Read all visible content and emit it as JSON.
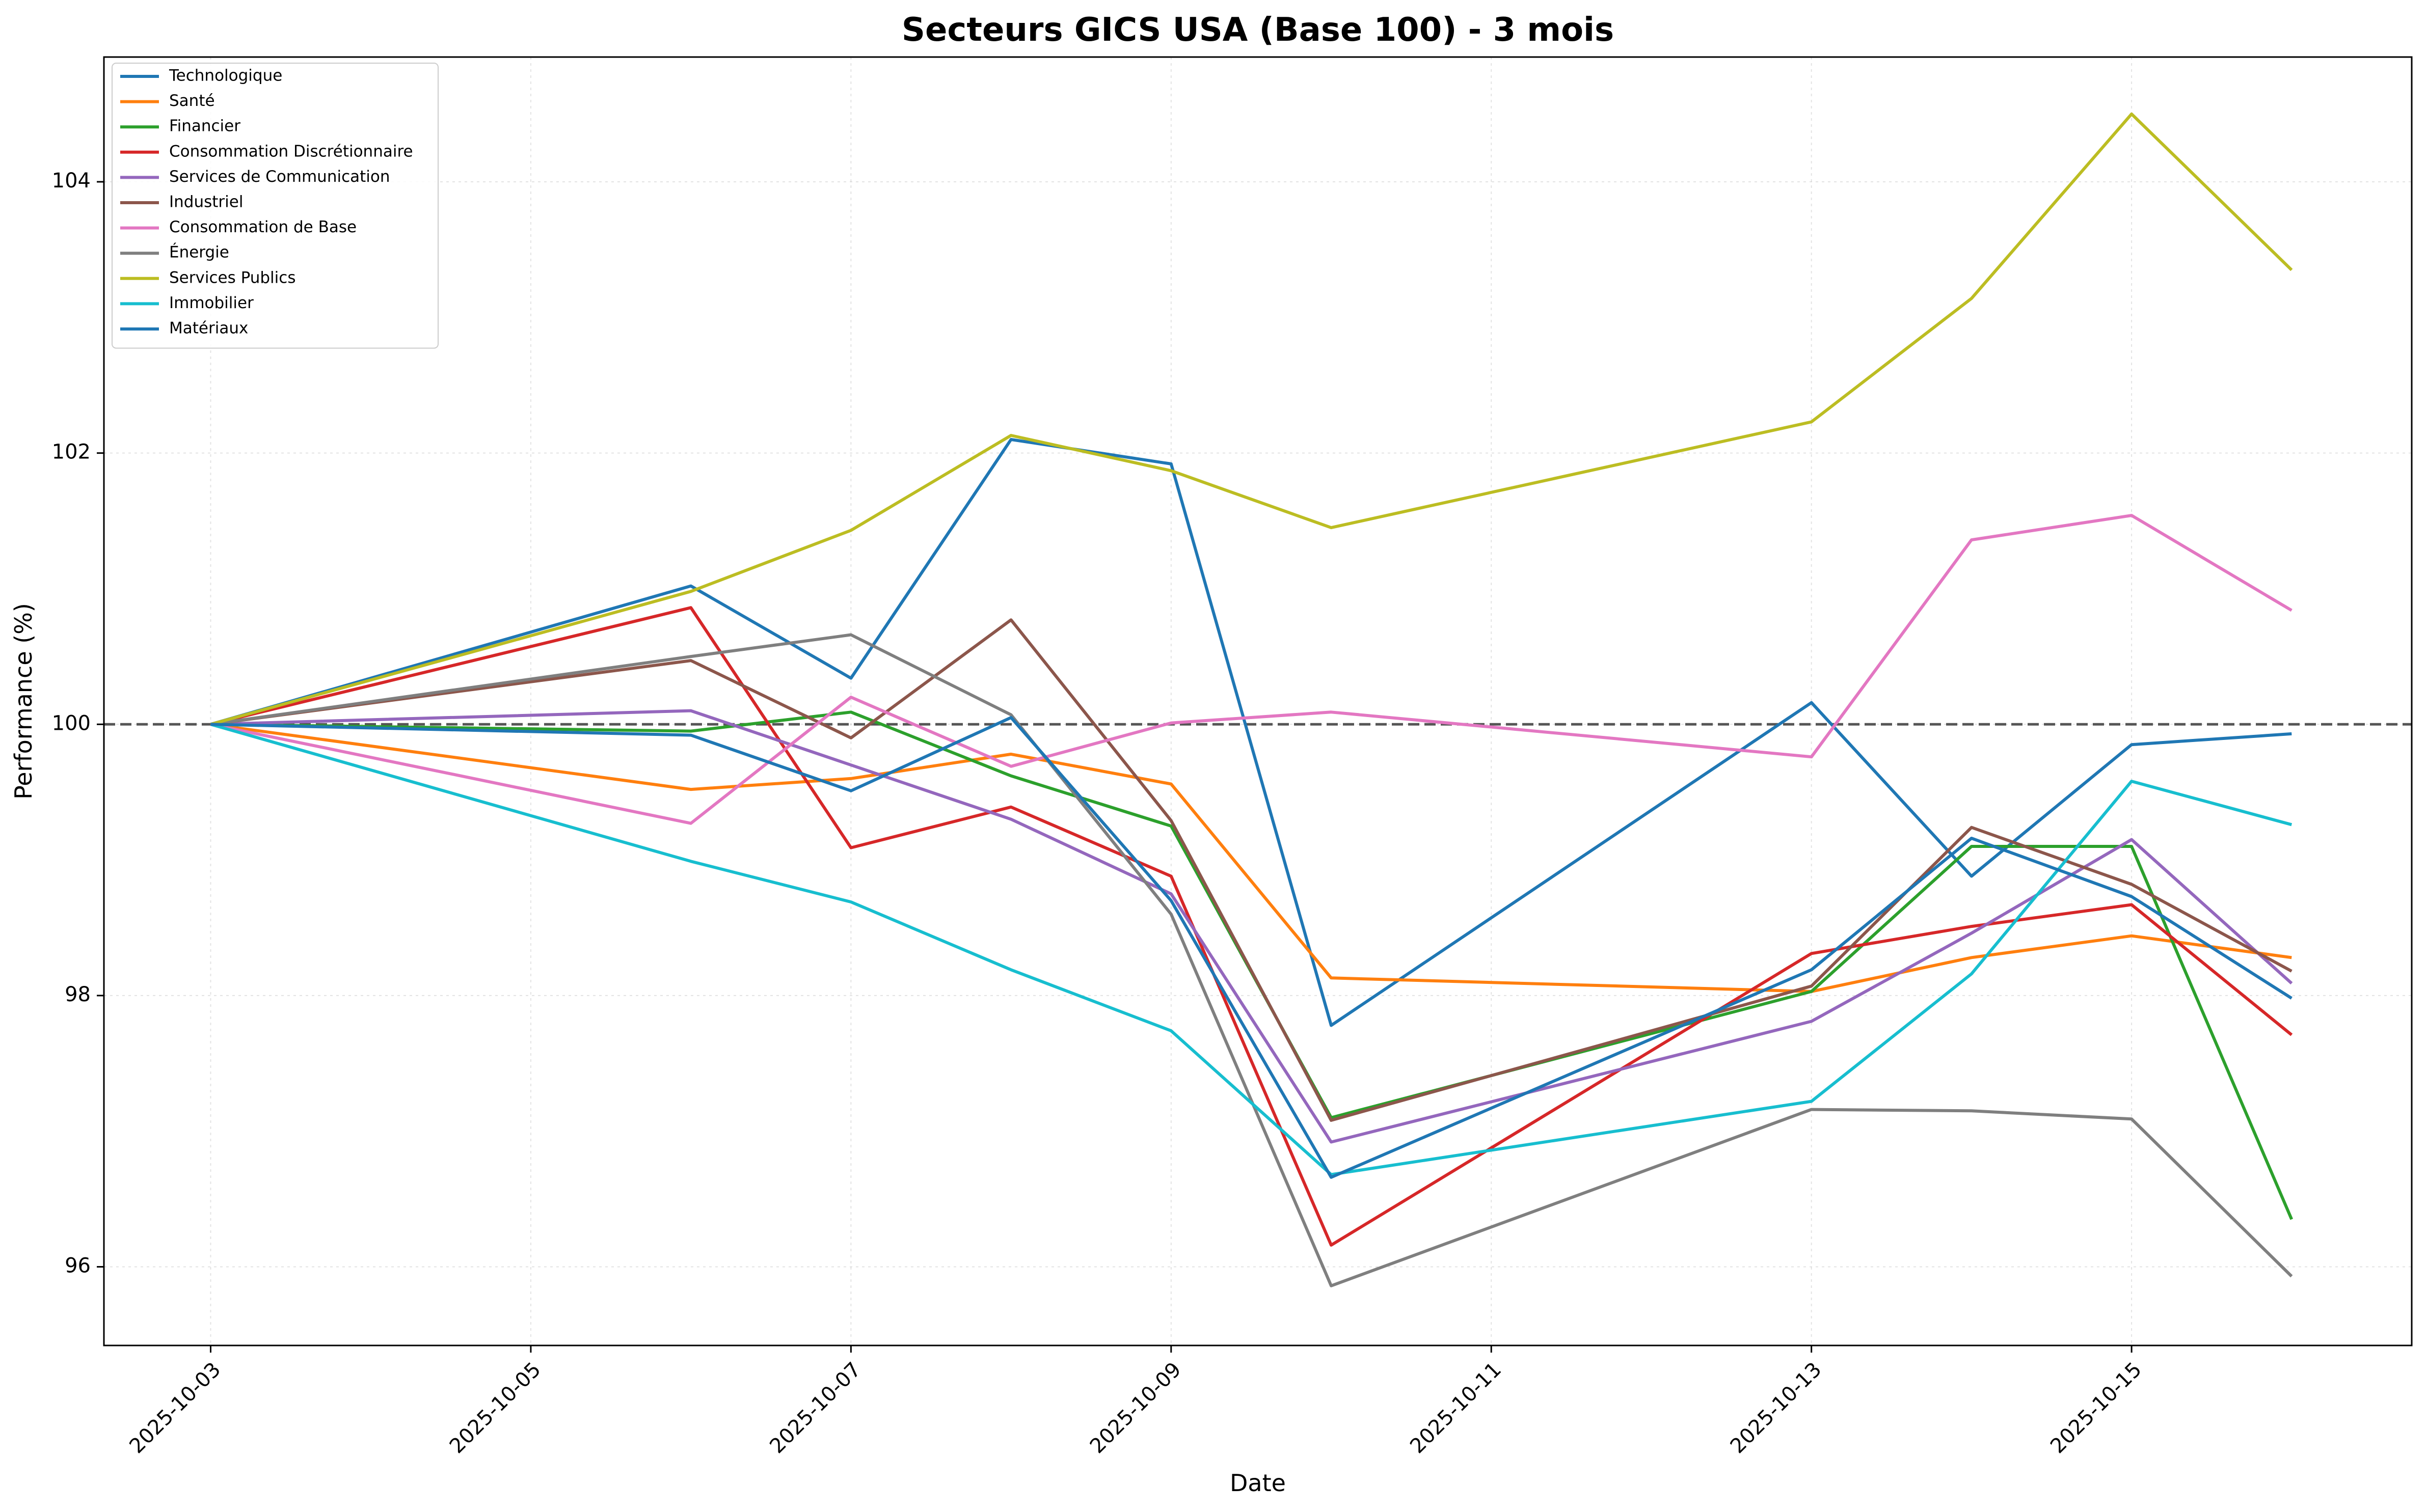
{
  "chart_data": {
    "type": "line",
    "title": "Secteurs GICS USA (Base 100) - 3 mois",
    "xlabel": "Date",
    "ylabel": "Performance (%)",
    "x": [
      "2025-10-03",
      "2025-10-06",
      "2025-10-07",
      "2025-10-08",
      "2025-10-09",
      "2025-10-10",
      "2025-10-13",
      "2025-10-14",
      "2025-10-15",
      "2025-10-16"
    ],
    "x_ticks": [
      "2025-10-03",
      "2025-10-05",
      "2025-10-07",
      "2025-10-09",
      "2025-10-11",
      "2025-10-13",
      "2025-10-15"
    ],
    "x_range": [
      "2025-10-02T08:00",
      "2025-10-16T18:00"
    ],
    "y_ticks": [
      96,
      98,
      100,
      102,
      104
    ],
    "ylim": [
      95.42,
      104.92
    ],
    "reference_line": {
      "y": 100,
      "style": "dashed",
      "color": "#555555"
    },
    "grid": true,
    "legend_position": "top-left",
    "series": [
      {
        "name": "Technologique",
        "color": "#1f77b4",
        "values": [
          100,
          101.02,
          100.34,
          102.1,
          101.92,
          97.78,
          100.16,
          98.88,
          99.85,
          99.93
        ]
      },
      {
        "name": "Santé",
        "color": "#ff7f0e",
        "values": [
          100,
          99.52,
          99.6,
          99.78,
          99.56,
          98.13,
          98.03,
          98.28,
          98.44,
          98.28
        ]
      },
      {
        "name": "Financier",
        "color": "#2ca02c",
        "values": [
          100,
          99.95,
          100.09,
          99.62,
          99.25,
          97.1,
          98.03,
          99.1,
          99.1,
          96.35
        ]
      },
      {
        "name": "Consommation Discrétionnaire",
        "color": "#d62728",
        "values": [
          100,
          100.86,
          99.09,
          99.39,
          98.88,
          96.16,
          98.31,
          98.51,
          98.67,
          97.71
        ]
      },
      {
        "name": "Services de Communication",
        "color": "#9467bd",
        "values": [
          100,
          100.1,
          99.7,
          99.3,
          98.75,
          96.92,
          97.81,
          98.46,
          99.15,
          98.09
        ]
      },
      {
        "name": "Industriel",
        "color": "#8c564b",
        "values": [
          100,
          100.47,
          99.9,
          100.77,
          99.29,
          97.08,
          98.07,
          99.24,
          98.82,
          98.18
        ]
      },
      {
        "name": "Consommation de Base",
        "color": "#e377c2",
        "values": [
          100,
          99.27,
          100.2,
          99.69,
          100.01,
          100.09,
          99.76,
          101.36,
          101.54,
          100.84
        ]
      },
      {
        "name": "Énergie",
        "color": "#7f7f7f",
        "values": [
          100,
          100.5,
          100.66,
          100.07,
          98.6,
          95.86,
          97.16,
          97.15,
          97.09,
          95.93
        ]
      },
      {
        "name": "Services Publics",
        "color": "#bcbd22",
        "values": [
          100,
          100.98,
          101.43,
          102.13,
          101.87,
          101.45,
          102.23,
          103.14,
          104.5,
          103.35
        ]
      },
      {
        "name": "Immobilier",
        "color": "#17becf",
        "values": [
          100,
          98.99,
          98.69,
          98.19,
          97.74,
          96.68,
          97.22,
          98.16,
          99.58,
          99.26
        ]
      },
      {
        "name": "Matériaux",
        "color": "#1f77b4",
        "values": [
          100,
          99.92,
          99.51,
          100.05,
          98.7,
          96.66,
          98.19,
          99.16,
          98.73,
          97.98
        ]
      }
    ]
  }
}
